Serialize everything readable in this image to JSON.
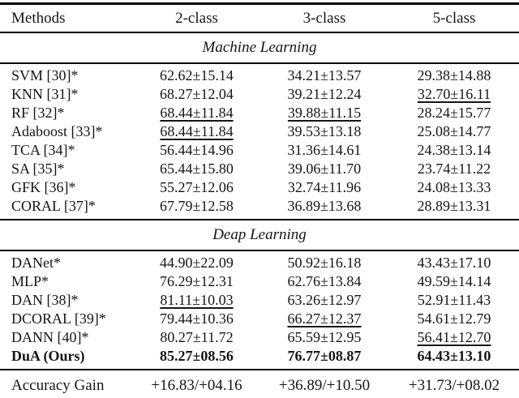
{
  "page": {
    "background_color": "#ffffff",
    "text_color": "#151515",
    "rule_color": "#000000"
  },
  "table": {
    "columns": [
      "Methods",
      "2-class",
      "3-class",
      "5-class"
    ],
    "sections": [
      {
        "title": "Machine Learning",
        "rows": [
          {
            "method": "SVM [30]*",
            "bold": false,
            "cells": [
              {
                "text": "62.62±15.14",
                "underline": false
              },
              {
                "text": "34.21±13.57",
                "underline": false
              },
              {
                "text": "29.38±14.88",
                "underline": false
              }
            ]
          },
          {
            "method": "KNN [31]*",
            "bold": false,
            "cells": [
              {
                "text": "68.27±12.04",
                "underline": false
              },
              {
                "text": "39.21±12.24",
                "underline": false
              },
              {
                "text": "32.70±16.11",
                "underline": true
              }
            ]
          },
          {
            "method": "RF [32]*",
            "bold": false,
            "cells": [
              {
                "text": "68.44±11.84",
                "underline": true
              },
              {
                "text": "39.88±11.15",
                "underline": true
              },
              {
                "text": "28.24±15.77",
                "underline": false
              }
            ]
          },
          {
            "method": "Adaboost [33]*",
            "bold": false,
            "cells": [
              {
                "text": "68.44±11.84",
                "underline": true
              },
              {
                "text": "39.53±13.18",
                "underline": false
              },
              {
                "text": "25.08±14.77",
                "underline": false
              }
            ]
          },
          {
            "method": "TCA [34]*",
            "bold": false,
            "cells": [
              {
                "text": "56.44±14.96",
                "underline": false
              },
              {
                "text": "31.36±14.61",
                "underline": false
              },
              {
                "text": "24.38±13.14",
                "underline": false
              }
            ]
          },
          {
            "method": "SA [35]*",
            "bold": false,
            "cells": [
              {
                "text": "65.44±15.80",
                "underline": false
              },
              {
                "text": "39.06±11.70",
                "underline": false
              },
              {
                "text": "23.74±11.22",
                "underline": false
              }
            ]
          },
          {
            "method": "GFK [36]*",
            "bold": false,
            "cells": [
              {
                "text": "55.27±12.06",
                "underline": false
              },
              {
                "text": "32.74±11.96",
                "underline": false
              },
              {
                "text": "24.08±13.33",
                "underline": false
              }
            ]
          },
          {
            "method": "CORAL [37]*",
            "bold": false,
            "cells": [
              {
                "text": "67.79±12.58",
                "underline": false
              },
              {
                "text": "36.89±13.68",
                "underline": false
              },
              {
                "text": "28.89±13.31",
                "underline": false
              }
            ]
          }
        ]
      },
      {
        "title": "Deap Learning",
        "rows": [
          {
            "method": "DANet*",
            "bold": false,
            "cells": [
              {
                "text": "44.90±22.09",
                "underline": false
              },
              {
                "text": "50.92±16.18",
                "underline": false
              },
              {
                "text": "43.43±17.10",
                "underline": false
              }
            ]
          },
          {
            "method": "MLP*",
            "bold": false,
            "cells": [
              {
                "text": "76.29±12.31",
                "underline": false
              },
              {
                "text": "62.76±13.84",
                "underline": false
              },
              {
                "text": "49.59±14.14",
                "underline": false
              }
            ]
          },
          {
            "method": "DAN [38]*",
            "bold": false,
            "cells": [
              {
                "text": "81.11±10.03",
                "underline": true
              },
              {
                "text": "63.26±12.97",
                "underline": false
              },
              {
                "text": "52.91±11.43",
                "underline": false
              }
            ]
          },
          {
            "method": "DCORAL [39]*",
            "bold": false,
            "cells": [
              {
                "text": "79.44±10.36",
                "underline": false
              },
              {
                "text": "66.27±12.37",
                "underline": true
              },
              {
                "text": "54.61±12.79",
                "underline": false
              }
            ]
          },
          {
            "method": "DANN [40]*",
            "bold": false,
            "cells": [
              {
                "text": "80.27±11.72",
                "underline": false
              },
              {
                "text": "65.59±12.95",
                "underline": false
              },
              {
                "text": "56.41±12.70",
                "underline": true
              }
            ]
          },
          {
            "method": "DuA (Ours)",
            "bold": true,
            "cells": [
              {
                "text": "85.27±08.56",
                "underline": false
              },
              {
                "text": "76.77±08.87",
                "underline": false
              },
              {
                "text": "64.43±13.10",
                "underline": false
              }
            ]
          }
        ]
      }
    ],
    "footer": {
      "label": "Accuracy Gain",
      "values": [
        "+16.83/+04.16",
        "+36.89/+10.50",
        "+31.73/+08.02"
      ]
    }
  }
}
